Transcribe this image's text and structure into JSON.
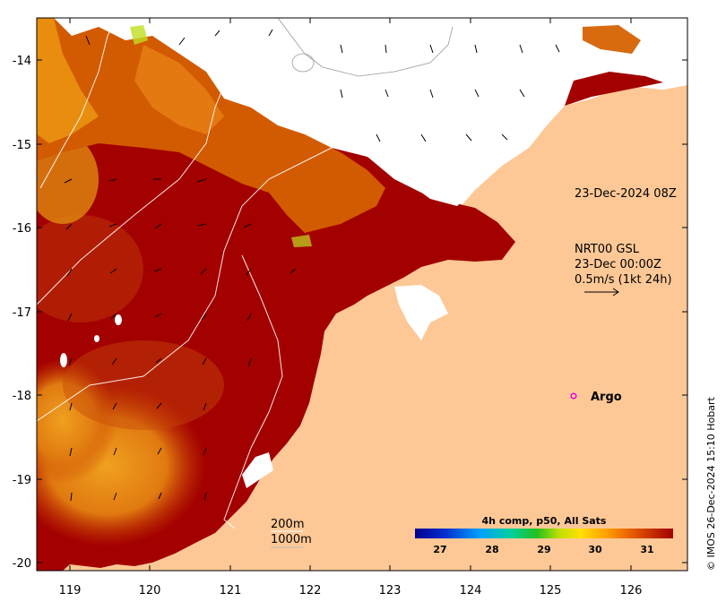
{
  "map": {
    "y_ticks": [
      "-14",
      "-15",
      "-16",
      "-17",
      "-18",
      "-19",
      "-20"
    ],
    "x_ticks": [
      "119",
      "120",
      "121",
      "122",
      "123",
      "124",
      "125",
      "126"
    ],
    "timestamp": "23-Dec-2024 08Z",
    "current_source": "NRT00 GSL",
    "current_time": "23-Dec 00:00Z",
    "vector_scale": "0.5m/s (1kt 24h)",
    "argo_label": "Argo",
    "contour_200": "200m",
    "contour_1000": "1000m",
    "colorbar_title": "4h comp, p50, All Sats",
    "colorbar_ticks": [
      "27",
      "28",
      "29",
      "30",
      "31"
    ],
    "credit": "© IMOS 26-Dec-2024 15:10 Hobart",
    "colors": {
      "land": "#fdc896",
      "sst_hot": "#a30000",
      "sst_warm": "#d45500",
      "sst_mid": "#ef9a10",
      "argo": "#e000e0"
    }
  }
}
